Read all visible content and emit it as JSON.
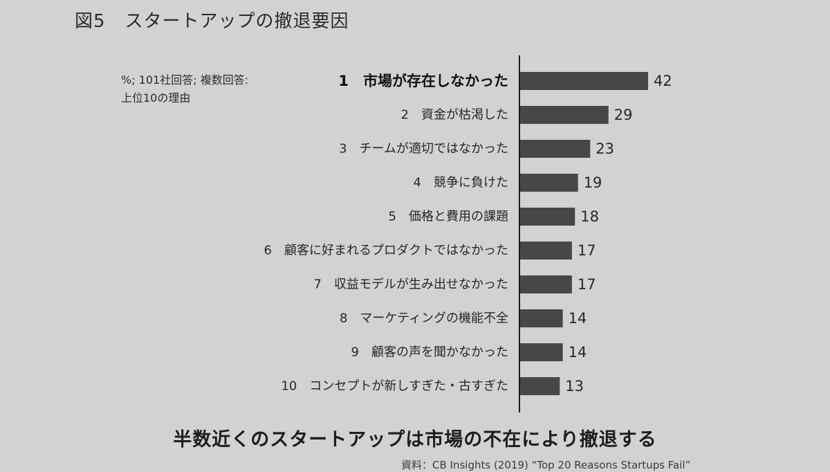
{
  "header": {
    "figure_label": "図5",
    "title": "スタートアップの撤退要因"
  },
  "note": {
    "line1": "%; 101社回答; 複数回答:",
    "line2": "上位10の理由"
  },
  "chart_data": {
    "type": "bar",
    "orientation": "horizontal",
    "unit": "%",
    "categories": [
      "1　市場が存在しなかった",
      "2　資金が枯渇した",
      "3　チームが適切ではなかった",
      "4　競争に負けた",
      "5　価格と費用の課題",
      "6　顧客に好まれるプロダクトではなかった",
      "7　収益モデルが生み出せなかった",
      "8　マーケティングの機能不全",
      "9　顧客の声を聞かなかった",
      "10　コンセプトが新しすぎた・古すぎた"
    ],
    "values": [
      42,
      29,
      23,
      19,
      18,
      17,
      17,
      14,
      14,
      13
    ],
    "xlim": [
      0,
      42
    ],
    "grid": false,
    "legend": "none",
    "colors": {
      "bar": "#474747",
      "axis": "#1a1a1a"
    }
  },
  "conclusion": "半数近くのスタートアップは市場の不在により撤退する",
  "source": "資料：CB Insights (2019) “Top 20 Reasons Startups Fail”"
}
